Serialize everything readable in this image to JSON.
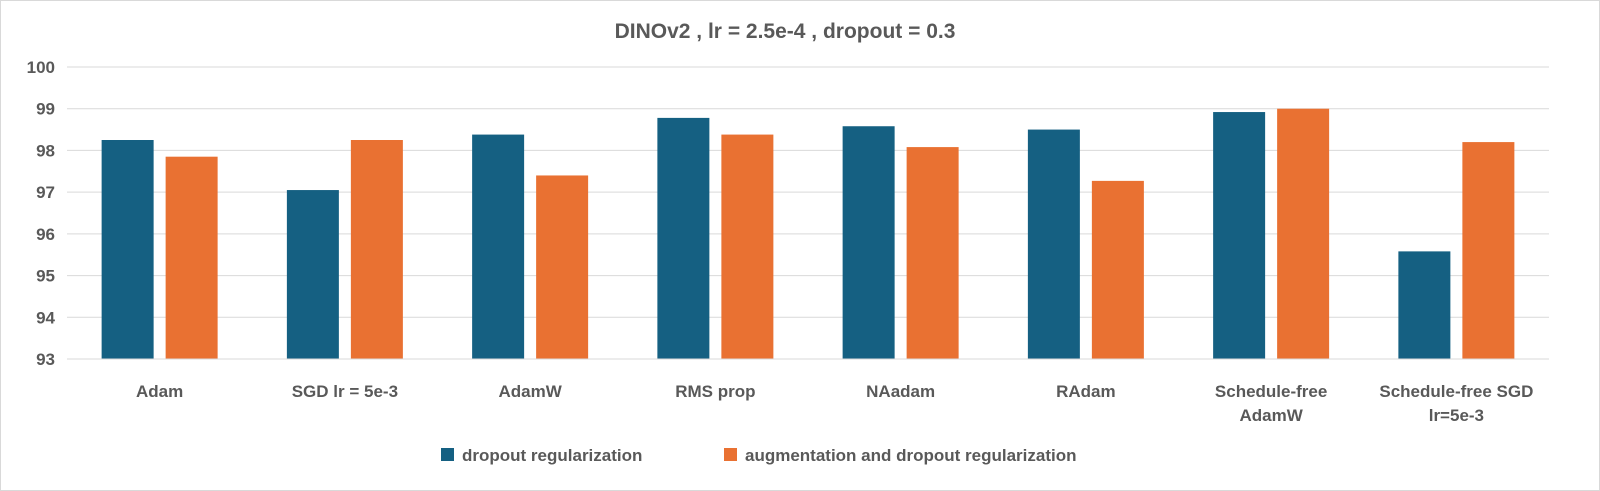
{
  "chart_data": {
    "type": "bar",
    "title": "DINOv2 ,  lr = 2.5e-4 , dropout = 0.3",
    "xlabel": "",
    "ylabel": "",
    "ylim": [
      93,
      100
    ],
    "yticks": [
      93,
      94,
      95,
      96,
      97,
      98,
      99,
      100
    ],
    "grid": true,
    "legend_position": "bottom",
    "categories": [
      [
        "Adam"
      ],
      [
        "SGD lr = 5e-3"
      ],
      [
        "AdamW"
      ],
      [
        "RMS prop"
      ],
      [
        "NAadam"
      ],
      [
        "RAdam"
      ],
      [
        "Schedule-free",
        "AdamW"
      ],
      [
        "Schedule-free SGD",
        "lr=5e-3"
      ]
    ],
    "series": [
      {
        "name": "dropout regularization",
        "color": "#156082",
        "values": [
          98.25,
          97.05,
          98.38,
          98.78,
          98.58,
          98.5,
          98.92,
          95.58
        ]
      },
      {
        "name": "augmentation and dropout regularization",
        "color": "#E97132",
        "values": [
          97.85,
          98.25,
          97.4,
          98.38,
          98.08,
          97.27,
          99.0,
          98.2
        ]
      }
    ]
  }
}
